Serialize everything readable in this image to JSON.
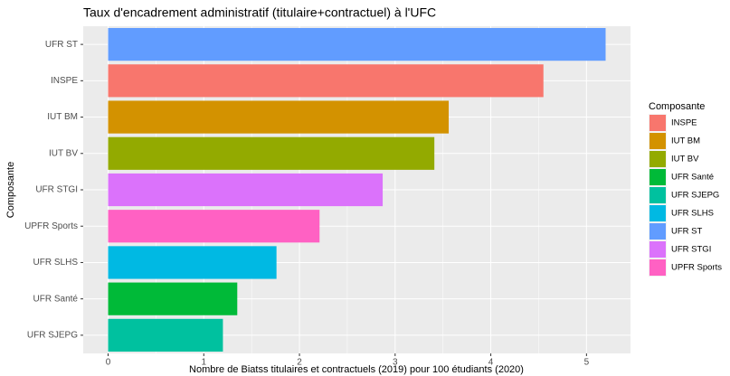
{
  "chart_data": {
    "type": "bar",
    "orientation": "horizontal",
    "title": "Taux d'encadrement administratif (titulaire+contractuel) à l'UFC",
    "x_label": "Nombre de Biatss titulaires et contractuels (2019) pour 100 étudiants (2020)",
    "y_label": "Composante",
    "categories": [
      "UFR ST",
      "INSPE",
      "IUT BM",
      "IUT BV",
      "UFR STGI",
      "UPFR Sports",
      "UFR SLHS",
      "UFR Santé",
      "UFR SJEPG"
    ],
    "values": [
      5.2,
      4.55,
      3.56,
      3.41,
      2.87,
      2.21,
      1.76,
      1.35,
      1.2
    ],
    "xlim": [
      -0.26,
      5.46
    ],
    "xticks": [
      0,
      1,
      2,
      3,
      4,
      5
    ],
    "grid": true,
    "legend": {
      "title": "Composante",
      "position": "right",
      "items": [
        {
          "name": "INSPE",
          "color": "#F8766D"
        },
        {
          "name": "IUT BM",
          "color": "#D39200"
        },
        {
          "name": "IUT BV",
          "color": "#93AA00"
        },
        {
          "name": "UFR Santé",
          "color": "#00BA38"
        },
        {
          "name": "UFR SJEPG",
          "color": "#00C19F"
        },
        {
          "name": "UFR SLHS",
          "color": "#00B9E3"
        },
        {
          "name": "UFR ST",
          "color": "#619CFF"
        },
        {
          "name": "UFR STGI",
          "color": "#DB72FB"
        },
        {
          "name": "UPFR Sports",
          "color": "#FF61C3"
        }
      ]
    }
  }
}
